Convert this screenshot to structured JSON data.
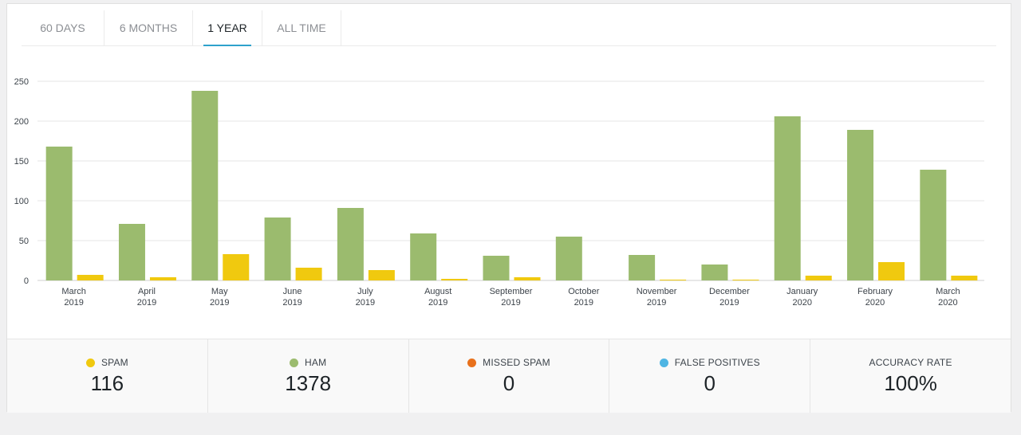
{
  "tabs": [
    {
      "label": "60 DAYS",
      "active": false
    },
    {
      "label": "6 MONTHS",
      "active": false
    },
    {
      "label": "1 YEAR",
      "active": true
    },
    {
      "label": "ALL TIME",
      "active": false
    }
  ],
  "colors": {
    "ham": "#9bbb6e",
    "spam": "#f0c90f",
    "missed_spam": "#e8711c",
    "false_positives": "#4fb5e3",
    "active_tab": "#2ea2cc"
  },
  "chart_data": {
    "type": "bar",
    "categories": [
      [
        "March",
        "2019"
      ],
      [
        "April",
        "2019"
      ],
      [
        "May",
        "2019"
      ],
      [
        "June",
        "2019"
      ],
      [
        "July",
        "2019"
      ],
      [
        "August",
        "2019"
      ],
      [
        "September",
        "2019"
      ],
      [
        "October",
        "2019"
      ],
      [
        "November",
        "2019"
      ],
      [
        "December",
        "2019"
      ],
      [
        "January",
        "2020"
      ],
      [
        "February",
        "2020"
      ],
      [
        "March",
        "2020"
      ]
    ],
    "series": [
      {
        "name": "HAM",
        "values": [
          168,
          71,
          238,
          79,
          91,
          59,
          31,
          55,
          32,
          20,
          206,
          189,
          139
        ]
      },
      {
        "name": "SPAM",
        "values": [
          7,
          4,
          33,
          16,
          13,
          2,
          4,
          0,
          1,
          1,
          6,
          23,
          6
        ]
      }
    ],
    "ylim": [
      0,
      250
    ],
    "yticks": [
      0,
      50,
      100,
      150,
      200,
      250
    ],
    "grid": true
  },
  "stats": [
    {
      "label": "SPAM",
      "value": "116",
      "dot": "#f0c90f"
    },
    {
      "label": "HAM",
      "value": "1378",
      "dot": "#9bbb6e"
    },
    {
      "label": "MISSED SPAM",
      "value": "0",
      "dot": "#e8711c"
    },
    {
      "label": "FALSE POSITIVES",
      "value": "0",
      "dot": "#4fb5e3"
    },
    {
      "label": "ACCURACY RATE",
      "value": "100%",
      "dot": ""
    }
  ]
}
